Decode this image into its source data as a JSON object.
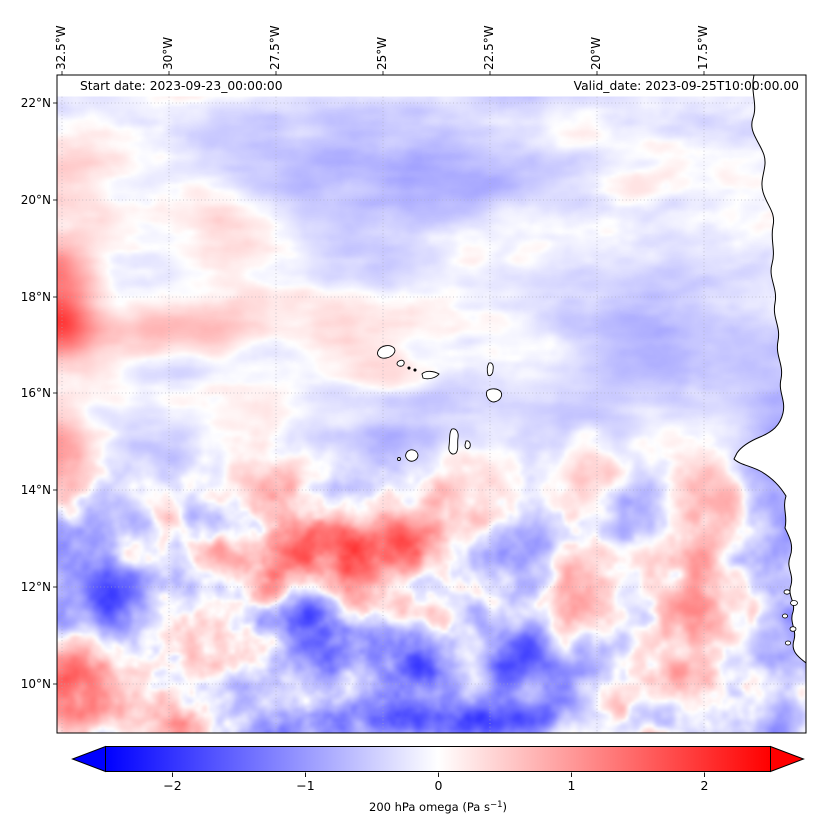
{
  "header": {
    "start_date": "Start date: 2023-09-23_00:00:00",
    "valid_date": "Valid_date: 2023-09-25T10:00:00.00"
  },
  "axes": {
    "x_ticks": [
      "32.5°W",
      "30°W",
      "27.5°W",
      "25°W",
      "22.5°W",
      "20°W",
      "17.5°W"
    ],
    "y_ticks": [
      "22°N",
      "20°N",
      "18°N",
      "16°N",
      "14°N",
      "12°N",
      "10°N"
    ]
  },
  "colorbar": {
    "ticks": [
      "−2",
      "−1",
      "0",
      "1",
      "2"
    ],
    "label_prefix": "200 hPa omega (Pa s",
    "label_sup": "−1",
    "label_suffix": ")"
  },
  "chart_data": {
    "type": "heatmap",
    "variable": "200 hPa omega",
    "units": "Pa s−1",
    "start_date": "2023-09-23_00:00:00",
    "valid_date": "2023-09-25T10:00:00.00",
    "x_axis": {
      "label": "longitude",
      "ticks_deg_west": [
        32.5,
        30,
        27.5,
        25,
        22.5,
        20,
        17.5
      ]
    },
    "y_axis": {
      "label": "latitude",
      "ticks_deg_north": [
        22,
        20,
        18,
        16,
        14,
        12,
        10
      ]
    },
    "colormap": "bwr diverging (blue-white-red)",
    "color_scale": {
      "ticks": [
        -2,
        -1,
        0,
        1,
        2
      ],
      "approx_range": [
        -2.5,
        2.5
      ],
      "extend": "both"
    },
    "grid": true,
    "legend_position": "horizontal colorbar below map",
    "map_features": [
      "West African coastline along eastern edge with white land mask",
      "Cape Verde island outlines near map center",
      "small coastal islands near bottom-right coast"
    ],
    "pattern_summary": "Weak pale omega anomalies with elongated streaks north of ~15°N; strong small-scale positive (red) and negative (blue) cells south of ~14°N; red band at the western edge near 16–17°N; bluish band along the African coast south of 14°N and along bottom edge."
  }
}
